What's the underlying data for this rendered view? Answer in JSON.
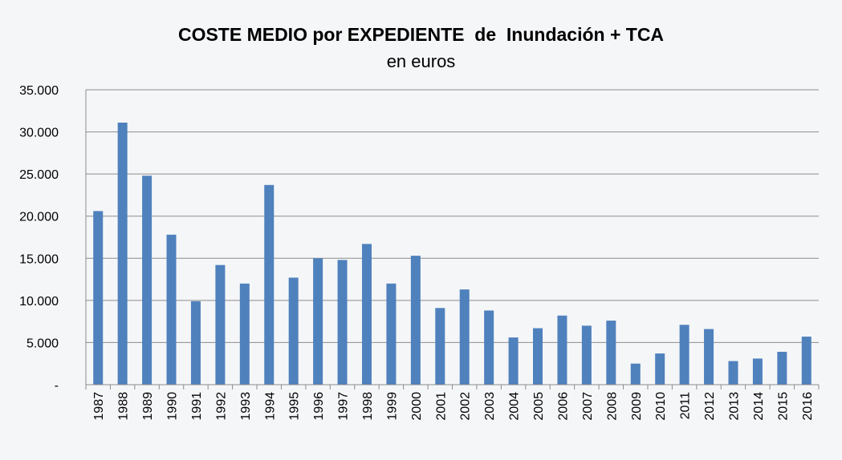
{
  "chart_data": {
    "type": "bar",
    "title": "COSTE MEDIO por EXPEDIENTE  de  Inundación + TCA",
    "subtitle": "en euros",
    "xlabel": "",
    "ylabel": "",
    "ylim": [
      0,
      35000
    ],
    "yticks": [
      0,
      5000,
      10000,
      15000,
      20000,
      25000,
      30000,
      35000
    ],
    "ytick_labels": [
      "-",
      "5.000",
      "10.000",
      "15.000",
      "20.000",
      "25.000",
      "30.000",
      "35.000"
    ],
    "grid": true,
    "legend": "none",
    "bar_color": "#4f81bd",
    "categories": [
      "1987",
      "1988",
      "1989",
      "1990",
      "1991",
      "1992",
      "1993",
      "1994",
      "1995",
      "1996",
      "1997",
      "1998",
      "1999",
      "2000",
      "2001",
      "2002",
      "2003",
      "2004",
      "2005",
      "2006",
      "2007",
      "2008",
      "2009",
      "2010",
      "2011",
      "2012",
      "2013",
      "2014",
      "2015",
      "2016"
    ],
    "values": [
      20600,
      31100,
      24800,
      17800,
      9900,
      14200,
      12000,
      23700,
      12700,
      15000,
      14800,
      16700,
      12000,
      15300,
      9100,
      11300,
      8800,
      5600,
      6700,
      8200,
      7000,
      7600,
      2500,
      3700,
      7100,
      6600,
      2800,
      3100,
      3900,
      5700
    ]
  }
}
